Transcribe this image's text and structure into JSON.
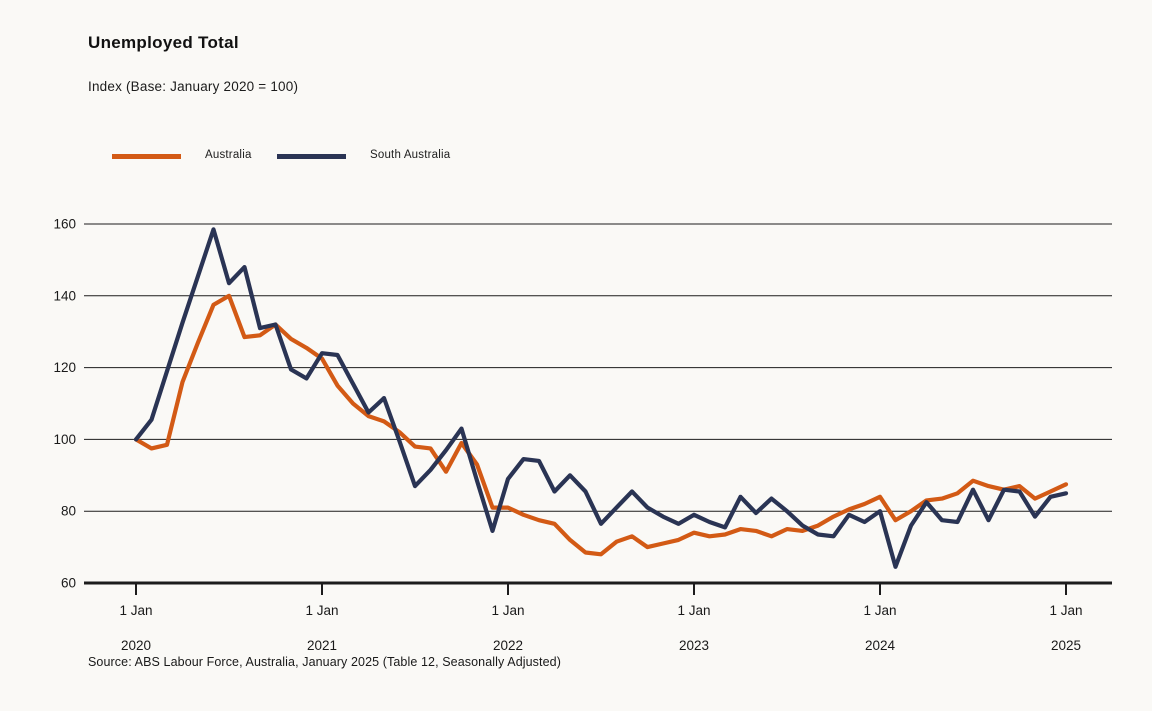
{
  "header": {
    "title": "Unemployed Total",
    "subtitle": "Index (Base: January 2020 = 100)"
  },
  "source_note": "Source: ABS Labour Force, Australia, January 2025 (Table 12, Seasonally Adjusted)",
  "colors": {
    "background": "#faf9f6",
    "text": "#1a1a1a",
    "grid": "#1c1c1c",
    "australia": "#d35a15",
    "south_australia": "#2a3454"
  },
  "chart_data": {
    "type": "line",
    "title": "Unemployed Total",
    "subtitle": "Index (Base: January 2020 = 100)",
    "x_unit": "month",
    "x_start": "2020-01",
    "x_end": "2025-01",
    "x_ticks": [
      {
        "label": "1 Jan",
        "year": "2020"
      },
      {
        "label": "1 Jan",
        "year": "2021"
      },
      {
        "label": "1 Jan",
        "year": "2022"
      },
      {
        "label": "1 Jan",
        "year": "2023"
      },
      {
        "label": "1 Jan",
        "year": "2024"
      },
      {
        "label": "1 Jan",
        "year": "2025"
      }
    ],
    "y_ticks": [
      160,
      140,
      120,
      100,
      80,
      60
    ],
    "ylim": [
      60,
      160
    ],
    "grid": "horizontal",
    "legend_position": "top-left",
    "series": [
      {
        "name": "Australia",
        "color": "#d35a15",
        "values": [
          100,
          97.5,
          98.5,
          116,
          127,
          137.5,
          140,
          128.5,
          129,
          132,
          128,
          125.5,
          122.5,
          115,
          110,
          106.5,
          105,
          102,
          98,
          97.5,
          91,
          99,
          93,
          81,
          81,
          79,
          77.5,
          76.5,
          72,
          68.5,
          68,
          71.5,
          73,
          70,
          71,
          72,
          74,
          73,
          73.5,
          75,
          74.5,
          73,
          75,
          74.5,
          76,
          78.5,
          80.5,
          82,
          84,
          77.5,
          80,
          83,
          83.5,
          85,
          88.5,
          87,
          86,
          87,
          83.5,
          85.5,
          87.5
        ]
      },
      {
        "name": "South Australia",
        "color": "#2a3454",
        "values": [
          100,
          105.5,
          119,
          132.5,
          145.5,
          158.5,
          143.5,
          148,
          131,
          132,
          119.5,
          117,
          124,
          123.5,
          115.5,
          107.5,
          111.5,
          99.5,
          87,
          91.5,
          97,
          103,
          88.5,
          74.5,
          89,
          94.5,
          94,
          85.5,
          90,
          85.5,
          76.5,
          81,
          85.5,
          81,
          78.5,
          76.5,
          79,
          77,
          75.5,
          84,
          79.5,
          83.5,
          80,
          76,
          73.5,
          73,
          79,
          77,
          80,
          64.5,
          76,
          82.5,
          77.5,
          77,
          86,
          77.5,
          86,
          85.5,
          78.5,
          84,
          85
        ]
      }
    ]
  }
}
